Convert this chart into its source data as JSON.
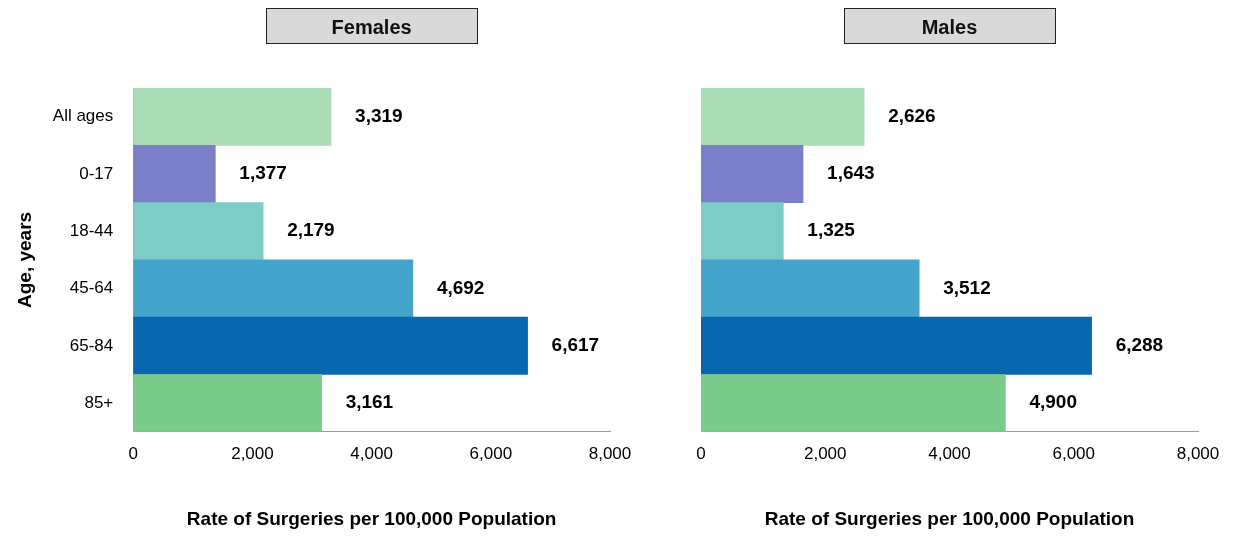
{
  "chart_data": [
    {
      "type": "bar",
      "orientation": "horizontal",
      "title": "Females",
      "ylabel": "Age, years",
      "xlabel": "Rate of Surgeries per 100,000 Population",
      "categories": [
        "All ages",
        "0-17",
        "18-44",
        "45-64",
        "65-84",
        "85+"
      ],
      "values": [
        3319,
        1377,
        2179,
        4692,
        6617,
        3161
      ],
      "value_labels": [
        "3,319",
        "1,377",
        "2,179",
        "4,692",
        "6,617",
        "3,161"
      ],
      "colors": [
        "#aadcb6",
        "#7b7fc8",
        "#7dccc6",
        "#44a4cc",
        "#0868ae",
        "#7acc8a"
      ],
      "xlim": [
        0,
        8000
      ],
      "xticks": [
        0,
        {
          "value": 2000,
          "label": "2,000"
        },
        {
          "value": 4000,
          "label": "4,000"
        },
        {
          "value": 6000,
          "label": "6,000"
        },
        {
          "value": 8000,
          "label": "8,000"
        }
      ]
    },
    {
      "type": "bar",
      "orientation": "horizontal",
      "title": "Males",
      "xlabel": "Rate of Surgeries per 100,000 Population",
      "tick_labels": "x",
      "categories": [
        null,
        null,
        null,
        null,
        null,
        null
      ],
      "values": [
        2626,
        1643,
        1325,
        3512,
        6288,
        4900
      ],
      "value_labels": [
        "2,626",
        "1,643",
        "1,325",
        "3,512",
        "6,288",
        "4,900"
      ],
      "colors": [
        "#aadcb6",
        "#7b7fc8",
        "#7dccc6",
        "#44a4cc",
        "#0868ae",
        "#7acc8a"
      ],
      "xlim": [
        0,
        8000
      ],
      "xticks": [
        0,
        {
          "value": 2000,
          "label": "2,000"
        },
        {
          "value": 4000,
          "label": "4,000"
        },
        {
          "value": 6000,
          "label": "6,000"
        },
        {
          "value": 8000,
          "label": "8,000"
        }
      ]
    }
  ]
}
